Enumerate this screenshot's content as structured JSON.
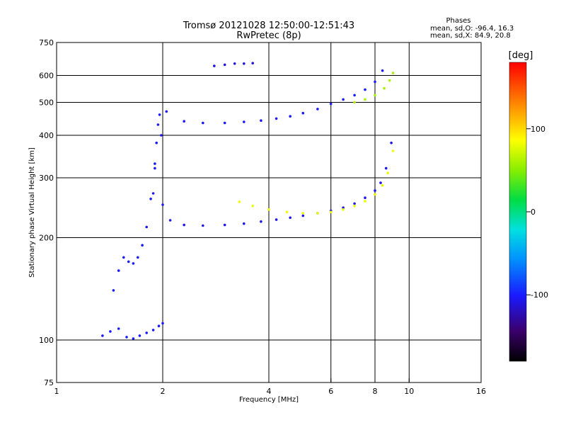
{
  "chart_data": {
    "type": "scatter",
    "title": "Tromsø 20121028 12:50:00-12:51:43",
    "subtitle": "RwPretec (8p)",
    "stats": {
      "heading": "Phases",
      "line1": "mean, sd,O: -96.4, 16.3",
      "line2": "mean, sd,X:  84.9, 20.8"
    },
    "xlabel": "Frequency [MHz]",
    "ylabel": "Stationary phase Virtual Height [km]",
    "x_scale": "log",
    "y_scale": "log",
    "xlim": [
      1,
      16
    ],
    "ylim": [
      75,
      750
    ],
    "x_ticks": [
      {
        "value": 1,
        "label": "1"
      },
      {
        "value": 2,
        "label": "2"
      },
      {
        "value": 4,
        "label": "4"
      },
      {
        "value": 6,
        "label": "6"
      },
      {
        "value": 8,
        "label": "8"
      },
      {
        "value": 10,
        "label": "10"
      },
      {
        "value": 16,
        "label": "16"
      }
    ],
    "x_gridlines": [
      2,
      4,
      6,
      8,
      10
    ],
    "y_ticks": [
      {
        "value": 75,
        "label": "75"
      },
      {
        "value": 100,
        "label": "100"
      },
      {
        "value": 200,
        "label": "200"
      },
      {
        "value": 300,
        "label": "300"
      },
      {
        "value": 400,
        "label": "400"
      },
      {
        "value": 500,
        "label": "500"
      },
      {
        "value": 600,
        "label": "600"
      },
      {
        "value": 750,
        "label": "750"
      }
    ],
    "y_gridlines": [
      100,
      200,
      300,
      400,
      500,
      600
    ],
    "grid": true,
    "colorbar": {
      "label": "[deg]",
      "range": [
        -180,
        180
      ],
      "ticks": [
        {
          "value": 100,
          "label": "100"
        },
        {
          "value": 0,
          "label": "0"
        },
        {
          "value": -100,
          "label": "-100"
        }
      ],
      "colormap": "rainbow"
    },
    "series": [
      {
        "id": "E-layer",
        "phase": -100,
        "x": [
          1.35,
          1.42,
          1.5,
          1.58,
          1.65,
          1.72,
          1.8,
          1.88,
          1.95,
          2.0
        ],
        "y": [
          103,
          106,
          108,
          102,
          101,
          103,
          105,
          107,
          110,
          112
        ]
      },
      {
        "id": "F1-O-low",
        "phase": -100,
        "x": [
          1.45,
          1.5,
          1.55,
          1.6,
          1.65,
          1.7,
          1.75,
          1.8,
          1.85,
          1.9
        ],
        "y": [
          140,
          160,
          175,
          170,
          168,
          175,
          190,
          215,
          260,
          330
        ]
      },
      {
        "id": "F1-O-spike",
        "phase": -100,
        "x": [
          1.88,
          1.9,
          1.92,
          1.94,
          1.96,
          1.98
        ],
        "y": [
          270,
          320,
          380,
          430,
          460,
          400
        ]
      },
      {
        "id": "F-O-trace",
        "phase": -105,
        "x": [
          2.0,
          2.1,
          2.3,
          2.6,
          3.0,
          3.4,
          3.8,
          4.2,
          4.6,
          5.0,
          5.5,
          6.0,
          6.5,
          7.0,
          7.5,
          8.0,
          8.3,
          8.6,
          8.9
        ],
        "y": [
          250,
          225,
          218,
          217,
          218,
          220,
          223,
          226,
          229,
          232,
          236,
          240,
          245,
          252,
          262,
          275,
          290,
          320,
          380
        ]
      },
      {
        "id": "F-X-trace",
        "phase": 80,
        "x": [
          3.3,
          3.6,
          4.0,
          4.5,
          5.0,
          5.5,
          6.0,
          6.5,
          7.0,
          7.5,
          8.0,
          8.4,
          8.7,
          9.0
        ],
        "y": [
          255,
          248,
          242,
          238,
          236,
          236,
          238,
          242,
          248,
          256,
          268,
          285,
          310,
          360
        ]
      },
      {
        "id": "F-upper-O",
        "phase": -100,
        "x": [
          2.05,
          2.3,
          2.6,
          3.0,
          3.4,
          3.8,
          4.2,
          4.6,
          5.0,
          5.5,
          6.0,
          6.5,
          7.0,
          7.5,
          8.0,
          8.4
        ],
        "y": [
          470,
          440,
          435,
          435,
          438,
          442,
          448,
          455,
          465,
          478,
          495,
          510,
          525,
          545,
          575,
          620
        ]
      },
      {
        "id": "F-upper-X",
        "phase": 60,
        "x": [
          7.0,
          7.5,
          8.0,
          8.5,
          8.8,
          9.0
        ],
        "y": [
          500,
          510,
          525,
          550,
          580,
          610
        ]
      },
      {
        "id": "multi-hop",
        "phase": -110,
        "x": [
          2.8,
          3.0,
          3.2,
          3.4,
          3.6
        ],
        "y": [
          640,
          645,
          650,
          650,
          652
        ]
      }
    ]
  }
}
